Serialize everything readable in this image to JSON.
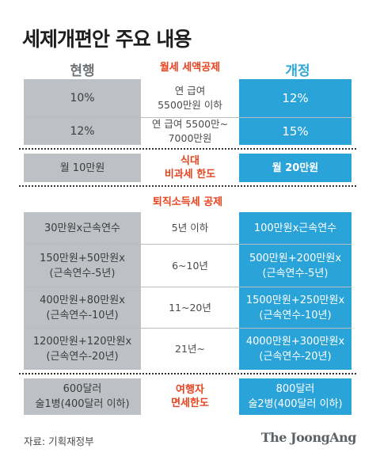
{
  "title": "세제개편안 주요 내용",
  "header": {
    "current": "현행",
    "revised": "개정"
  },
  "monthly_rent": {
    "section_label": "월세 세액공제",
    "rows": [
      {
        "current": "10%",
        "condition": [
          "연 급여",
          "5500만원 이하"
        ],
        "revised": "12%"
      },
      {
        "current": "12%",
        "condition": [
          "연 급여 5500만~",
          "7000만원"
        ],
        "revised": "15%"
      }
    ]
  },
  "meal": {
    "label": [
      "식대",
      "비과세 한도"
    ],
    "current": "월 10만원",
    "revised": "월 20만원"
  },
  "retirement": {
    "section_label": "퇴직소득세 공제",
    "rows": [
      {
        "current": [
          "30만원x근속연수"
        ],
        "condition": "5년 이하",
        "revised": [
          "100만원x근속연수"
        ]
      },
      {
        "current": [
          "150만원+50만원x",
          "(근속연수-5년)"
        ],
        "condition": "6~10년",
        "revised": [
          "500만원+200만원x",
          "(근속연수-5년)"
        ]
      },
      {
        "current": [
          "400만원+80만원x",
          "(근속연수-10년)"
        ],
        "condition": "11~20년",
        "revised": [
          "1500만원+250만원x",
          "(근속연수-10년)"
        ]
      },
      {
        "current": [
          "1200만원+120만원x",
          "(근속연수-20년)"
        ],
        "condition": "21년~",
        "revised": [
          "4000만원+300만원x",
          "(근속연수-20년)"
        ]
      }
    ]
  },
  "dutyfree": {
    "label": [
      "여행자",
      "면세한도"
    ],
    "current": [
      "600달러",
      "술1병(400달러 이하)"
    ],
    "revised": [
      "800달러",
      "술2병(400달러 이하)"
    ]
  },
  "footer": {
    "source": "자료: 기획재정부",
    "logo": "The JoongAng"
  },
  "colors": {
    "revised_bg": "#29a3d8",
    "current_bg": "#bdc1c5",
    "accent": "#e8431f"
  }
}
